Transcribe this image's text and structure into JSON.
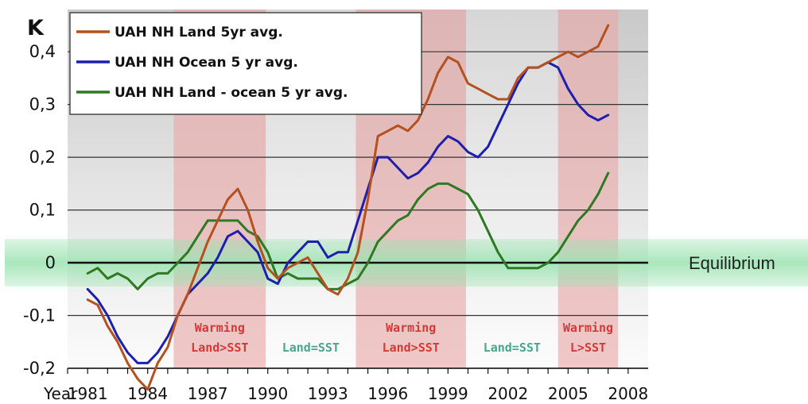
{
  "chart_data": {
    "type": "line",
    "unit_label": "K",
    "ylim": [
      -0.2,
      0.48
    ],
    "y_ticks": [
      {
        "value": 0.4,
        "label": "0,4"
      },
      {
        "value": 0.3,
        "label": "0,3"
      },
      {
        "value": 0.2,
        "label": "0,2"
      },
      {
        "value": 0.1,
        "label": "0,1"
      },
      {
        "value": 0.0,
        "label": "0"
      },
      {
        "value": -0.1,
        "label": "-0,1"
      },
      {
        "value": -0.2,
        "label": "-0,2"
      }
    ],
    "x_axis_word": "Year",
    "xlim": [
      1978.5,
      2008.5
    ],
    "x_ticks": [
      {
        "value": 1981,
        "label": "1981"
      },
      {
        "value": 1984,
        "label": "1984"
      },
      {
        "value": 1987,
        "label": "1987"
      },
      {
        "value": 1990,
        "label": "1990"
      },
      {
        "value": 1993,
        "label": "1993"
      },
      {
        "value": 1996,
        "label": "1996"
      },
      {
        "value": 1999,
        "label": "1999"
      },
      {
        "value": 2002,
        "label": "2002"
      },
      {
        "value": 2005,
        "label": "2005"
      },
      {
        "value": 2008,
        "label": "2008"
      }
    ],
    "grid": true,
    "legend": "top-left",
    "equilibrium": {
      "label": "Equilibrium",
      "band": [
        -0.045,
        0.045
      ],
      "color": "#9be3b0"
    },
    "periods": [
      {
        "start": 1985.3,
        "end": 1989.9,
        "type": "warming",
        "lines": [
          "Warming",
          "Land>SST"
        ]
      },
      {
        "start": 1989.9,
        "end": 1994.4,
        "type": "equal",
        "lines": [
          "Land=SST"
        ]
      },
      {
        "start": 1994.4,
        "end": 1999.9,
        "type": "warming",
        "lines": [
          "Warming",
          "Land>SST"
        ]
      },
      {
        "start": 1999.9,
        "end": 2004.5,
        "type": "equal",
        "lines": [
          "Land=SST"
        ]
      },
      {
        "start": 2004.5,
        "end": 2007.5,
        "type": "warming",
        "lines": [
          "Warming",
          "L>SST"
        ]
      }
    ],
    "series": [
      {
        "name": "UAH NH Land 5yr avg.",
        "color": "#b5501f",
        "x": [
          1981.0,
          1981.5,
          1982.0,
          1982.5,
          1983.0,
          1983.5,
          1984.0,
          1984.5,
          1985.0,
          1985.5,
          1986.0,
          1986.5,
          1987.0,
          1987.5,
          1988.0,
          1988.5,
          1989.0,
          1989.5,
          1990.0,
          1990.5,
          1991.0,
          1991.5,
          1992.0,
          1992.5,
          1993.0,
          1993.5,
          1994.0,
          1994.5,
          1995.0,
          1995.5,
          1996.0,
          1996.5,
          1997.0,
          1997.5,
          1998.0,
          1998.5,
          1999.0,
          1999.5,
          2000.0,
          2000.5,
          2001.0,
          2001.5,
          2002.0,
          2002.5,
          2003.0,
          2003.5,
          2004.0,
          2004.5,
          2005.0,
          2005.5,
          2006.0,
          2006.5,
          2007.0
        ],
        "values": [
          -0.07,
          -0.08,
          -0.12,
          -0.15,
          -0.19,
          -0.22,
          -0.24,
          -0.19,
          -0.16,
          -0.1,
          -0.06,
          -0.01,
          0.04,
          0.08,
          0.12,
          0.14,
          0.1,
          0.04,
          -0.01,
          -0.03,
          -0.01,
          0.0,
          0.01,
          -0.02,
          -0.05,
          -0.06,
          -0.03,
          0.02,
          0.12,
          0.24,
          0.25,
          0.26,
          0.25,
          0.27,
          0.31,
          0.36,
          0.39,
          0.38,
          0.34,
          0.33,
          0.32,
          0.31,
          0.31,
          0.35,
          0.37,
          0.37,
          0.38,
          0.39,
          0.4,
          0.39,
          0.4,
          0.41,
          0.45
        ]
      },
      {
        "name": "UAH NH Ocean 5 yr avg.",
        "color": "#1f1fae",
        "x": [
          1981.0,
          1981.5,
          1982.0,
          1982.5,
          1983.0,
          1983.5,
          1984.0,
          1984.5,
          1985.0,
          1985.5,
          1986.0,
          1986.5,
          1987.0,
          1987.5,
          1988.0,
          1988.5,
          1989.0,
          1989.5,
          1990.0,
          1990.5,
          1991.0,
          1991.5,
          1992.0,
          1992.5,
          1993.0,
          1993.5,
          1994.0,
          1994.5,
          1995.0,
          1995.5,
          1996.0,
          1996.5,
          1997.0,
          1997.5,
          1998.0,
          1998.5,
          1999.0,
          1999.5,
          2000.0,
          2000.5,
          2001.0,
          2001.5,
          2002.0,
          2002.5,
          2003.0,
          2003.5,
          2004.0,
          2004.5,
          2005.0,
          2005.5,
          2006.0,
          2006.5,
          2007.0
        ],
        "values": [
          -0.05,
          -0.07,
          -0.1,
          -0.14,
          -0.17,
          -0.19,
          -0.19,
          -0.17,
          -0.14,
          -0.1,
          -0.06,
          -0.04,
          -0.02,
          0.01,
          0.05,
          0.06,
          0.04,
          0.02,
          -0.03,
          -0.04,
          0.0,
          0.02,
          0.04,
          0.04,
          0.01,
          0.02,
          0.02,
          0.08,
          0.14,
          0.2,
          0.2,
          0.18,
          0.16,
          0.17,
          0.19,
          0.22,
          0.24,
          0.23,
          0.21,
          0.2,
          0.22,
          0.26,
          0.3,
          0.34,
          0.37,
          0.37,
          0.38,
          0.37,
          0.33,
          0.3,
          0.28,
          0.27,
          0.28
        ]
      },
      {
        "name": "UAH NH Land - ocean 5 yr avg.",
        "color": "#2d7a22",
        "x": [
          1981.0,
          1981.5,
          1982.0,
          1982.5,
          1983.0,
          1983.5,
          1984.0,
          1984.5,
          1985.0,
          1985.5,
          1986.0,
          1986.5,
          1987.0,
          1987.5,
          1988.0,
          1988.5,
          1989.0,
          1989.5,
          1990.0,
          1990.5,
          1991.0,
          1991.5,
          1992.0,
          1992.5,
          1993.0,
          1993.5,
          1994.0,
          1994.5,
          1995.0,
          1995.5,
          1996.0,
          1996.5,
          1997.0,
          1997.5,
          1998.0,
          1998.5,
          1999.0,
          1999.5,
          2000.0,
          2000.5,
          2001.0,
          2001.5,
          2002.0,
          2002.5,
          2003.0,
          2003.5,
          2004.0,
          2004.5,
          2005.0,
          2005.5,
          2006.0,
          2006.5,
          2007.0
        ],
        "values": [
          -0.02,
          -0.01,
          -0.03,
          -0.02,
          -0.03,
          -0.05,
          -0.03,
          -0.02,
          -0.02,
          0.0,
          0.02,
          0.05,
          0.08,
          0.08,
          0.08,
          0.08,
          0.06,
          0.05,
          0.02,
          -0.03,
          -0.02,
          -0.03,
          -0.03,
          -0.03,
          -0.05,
          -0.05,
          -0.04,
          -0.03,
          0.0,
          0.04,
          0.06,
          0.08,
          0.09,
          0.12,
          0.14,
          0.15,
          0.15,
          0.14,
          0.13,
          0.1,
          0.06,
          0.02,
          -0.01,
          -0.01,
          -0.01,
          -0.01,
          0.0,
          0.02,
          0.05,
          0.08,
          0.1,
          0.13,
          0.17
        ]
      }
    ]
  }
}
